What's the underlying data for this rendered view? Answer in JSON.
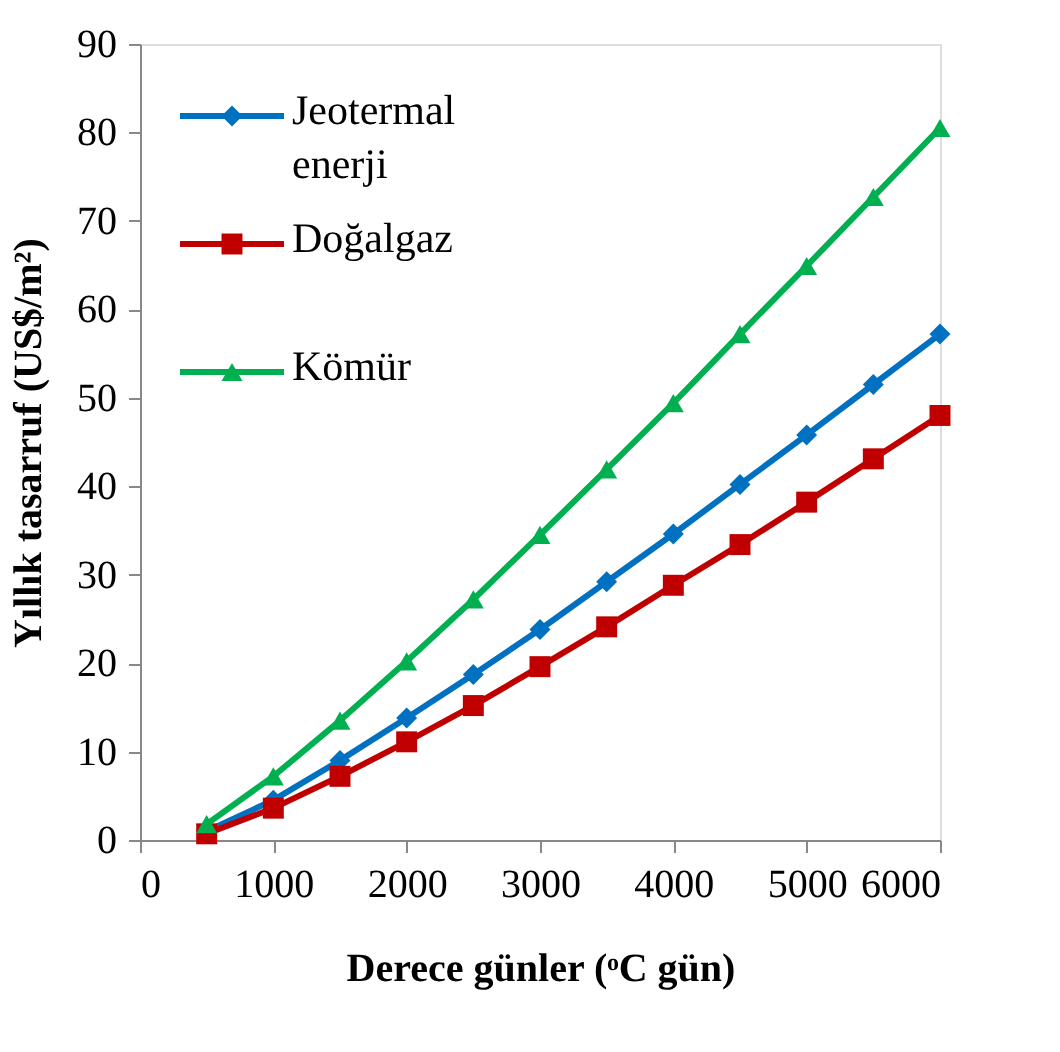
{
  "chart_data": {
    "type": "line",
    "xlabel": "Derece günler (ᵒC gün)",
    "ylabel": "Yıllık tasarruf (US$/m²)",
    "x": [
      500,
      1000,
      1500,
      2000,
      2500,
      3000,
      3500,
      4000,
      4500,
      5000,
      5500,
      6000
    ],
    "series": [
      {
        "name": "Jeotermal enerji",
        "color": "#0070c0",
        "marker": "diamond",
        "values": [
          1.0,
          4.5,
          9.0,
          13.8,
          18.7,
          23.8,
          29.2,
          34.6,
          40.2,
          45.8,
          51.5,
          57.2
        ]
      },
      {
        "name": "Doğalgaz",
        "color": "#c00000",
        "marker": "square",
        "values": [
          0.7,
          3.6,
          7.2,
          11.1,
          15.2,
          19.6,
          24.1,
          28.8,
          33.4,
          38.2,
          43.1,
          48.0
        ]
      },
      {
        "name": "Kömür",
        "color": "#00b050",
        "marker": "triangle",
        "values": [
          1.8,
          7.2,
          13.5,
          20.2,
          27.2,
          34.5,
          41.9,
          49.4,
          57.2,
          64.9,
          72.7,
          80.5
        ]
      }
    ],
    "xlim": [
      0,
      6000
    ],
    "xticks": [
      0,
      1000,
      2000,
      3000,
      4000,
      5000,
      6000
    ],
    "ylim": [
      0,
      90
    ],
    "yticks": [
      0,
      10,
      20,
      30,
      40,
      50,
      60,
      70,
      80,
      90
    ],
    "grid": false,
    "legend": "top left",
    "line_style": "solid"
  }
}
